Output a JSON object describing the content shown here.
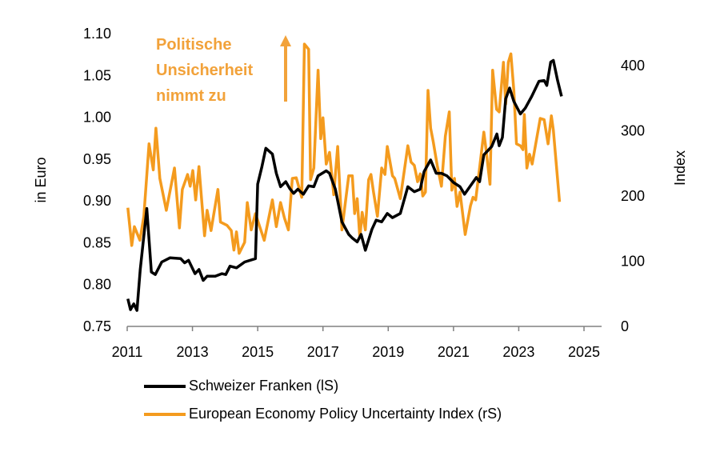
{
  "colors": {
    "chf": "#000000",
    "epu": "#F49B1E",
    "annotation": "#F2A23A"
  },
  "annotation": {
    "lines": [
      "Politische",
      "Unsicherheit",
      "nimmt zu"
    ],
    "arrow": "up-arrow"
  },
  "legend": {
    "placement": "bottom",
    "items": [
      {
        "label": "Schweizer Franken (lS)"
      },
      {
        "label": "European Economy Policy Uncertainty Index (rS)"
      }
    ]
  },
  "chart_data": {
    "type": "line",
    "xlabel": "",
    "ylabel_left": "in Euro",
    "ylabel_right": "Index",
    "xlim": [
      2011,
      2025
    ],
    "ylim_left": [
      0.75,
      1.1
    ],
    "ylim_right": [
      0,
      450
    ],
    "x_ticks": [
      "2011",
      "2013",
      "2015",
      "2017",
      "2019",
      "2021",
      "2023",
      "2025"
    ],
    "y_left_ticks": [
      "0.75",
      "0.80",
      "0.85",
      "0.90",
      "0.95",
      "1.00",
      "1.05",
      "1.10"
    ],
    "y_right_ticks": [
      "0",
      "100",
      "200",
      "300",
      "400"
    ],
    "grid": false,
    "series": [
      {
        "name": "Schweizer Franken (lS)",
        "axis": "left",
        "points": [
          [
            2011.02,
            0.783
          ],
          [
            2011.1,
            0.77
          ],
          [
            2011.2,
            0.777
          ],
          [
            2011.3,
            0.769
          ],
          [
            2011.4,
            0.818
          ],
          [
            2011.6,
            0.891
          ],
          [
            2011.74,
            0.815
          ],
          [
            2011.86,
            0.812
          ],
          [
            2012.06,
            0.827
          ],
          [
            2012.31,
            0.832
          ],
          [
            2012.64,
            0.831
          ],
          [
            2012.76,
            0.826
          ],
          [
            2012.88,
            0.829
          ],
          [
            2013.08,
            0.813
          ],
          [
            2013.2,
            0.818
          ],
          [
            2013.33,
            0.805
          ],
          [
            2013.45,
            0.81
          ],
          [
            2013.7,
            0.81
          ],
          [
            2013.9,
            0.813
          ],
          [
            2014.02,
            0.812
          ],
          [
            2014.15,
            0.822
          ],
          [
            2014.35,
            0.82
          ],
          [
            2014.6,
            0.827
          ],
          [
            2014.93,
            0.831
          ],
          [
            2015.0,
            0.92
          ],
          [
            2015.13,
            0.941
          ],
          [
            2015.25,
            0.963
          ],
          [
            2015.45,
            0.956
          ],
          [
            2015.57,
            0.933
          ],
          [
            2015.7,
            0.917
          ],
          [
            2015.86,
            0.923
          ],
          [
            2015.98,
            0.915
          ],
          [
            2016.1,
            0.909
          ],
          [
            2016.23,
            0.914
          ],
          [
            2016.4,
            0.908
          ],
          [
            2016.56,
            0.918
          ],
          [
            2016.72,
            0.917
          ],
          [
            2016.85,
            0.93
          ],
          [
            2017.1,
            0.936
          ],
          [
            2017.2,
            0.933
          ],
          [
            2017.38,
            0.914
          ],
          [
            2017.58,
            0.875
          ],
          [
            2017.79,
            0.86
          ],
          [
            2017.89,
            0.856
          ],
          [
            2018.05,
            0.851
          ],
          [
            2018.17,
            0.86
          ],
          [
            2018.3,
            0.841
          ],
          [
            2018.5,
            0.866
          ],
          [
            2018.63,
            0.877
          ],
          [
            2018.8,
            0.875
          ],
          [
            2018.97,
            0.885
          ],
          [
            2019.13,
            0.88
          ],
          [
            2019.37,
            0.885
          ],
          [
            2019.6,
            0.917
          ],
          [
            2019.8,
            0.911
          ],
          [
            2019.98,
            0.914
          ],
          [
            2020.1,
            0.935
          ],
          [
            2020.3,
            0.949
          ],
          [
            2020.47,
            0.933
          ],
          [
            2020.63,
            0.933
          ],
          [
            2020.8,
            0.93
          ],
          [
            2021.0,
            0.922
          ],
          [
            2021.2,
            0.917
          ],
          [
            2021.34,
            0.908
          ],
          [
            2021.5,
            0.917
          ],
          [
            2021.7,
            0.928
          ],
          [
            2021.8,
            0.923
          ],
          [
            2021.93,
            0.955
          ],
          [
            2022.17,
            0.965
          ],
          [
            2022.33,
            0.98
          ],
          [
            2022.4,
            0.966
          ],
          [
            2022.5,
            0.976
          ],
          [
            2022.6,
            1.022
          ],
          [
            2022.72,
            1.035
          ],
          [
            2022.85,
            1.019
          ],
          [
            2023.05,
            1.004
          ],
          [
            2023.2,
            1.011
          ],
          [
            2023.4,
            1.025
          ],
          [
            2023.62,
            1.043
          ],
          [
            2023.78,
            1.044
          ],
          [
            2023.86,
            1.038
          ],
          [
            2023.98,
            1.066
          ],
          [
            2024.06,
            1.068
          ],
          [
            2024.19,
            1.044
          ],
          [
            2024.31,
            1.025
          ]
        ]
      },
      {
        "name": "European Economy Policy Uncertainty Index (rS)",
        "axis": "right",
        "points": [
          [
            2011.02,
            182
          ],
          [
            2011.14,
            124
          ],
          [
            2011.22,
            153
          ],
          [
            2011.39,
            132
          ],
          [
            2011.51,
            169
          ],
          [
            2011.67,
            280
          ],
          [
            2011.8,
            240
          ],
          [
            2011.88,
            304
          ],
          [
            2012.0,
            227
          ],
          [
            2012.2,
            178
          ],
          [
            2012.45,
            243
          ],
          [
            2012.6,
            151
          ],
          [
            2012.69,
            210
          ],
          [
            2012.85,
            233
          ],
          [
            2012.93,
            215
          ],
          [
            2013.01,
            239
          ],
          [
            2013.1,
            194
          ],
          [
            2013.2,
            245
          ],
          [
            2013.37,
            139
          ],
          [
            2013.45,
            178
          ],
          [
            2013.57,
            147
          ],
          [
            2013.78,
            210
          ],
          [
            2013.86,
            160
          ],
          [
            2014.06,
            155
          ],
          [
            2014.19,
            147
          ],
          [
            2014.27,
            117
          ],
          [
            2014.35,
            145
          ],
          [
            2014.43,
            112
          ],
          [
            2014.6,
            129
          ],
          [
            2014.68,
            190
          ],
          [
            2014.8,
            148
          ],
          [
            2014.93,
            173
          ],
          [
            2015.2,
            132
          ],
          [
            2015.45,
            194
          ],
          [
            2015.57,
            153
          ],
          [
            2015.7,
            190
          ],
          [
            2015.82,
            166
          ],
          [
            2015.94,
            148
          ],
          [
            2016.06,
            227
          ],
          [
            2016.18,
            228
          ],
          [
            2016.35,
            198
          ],
          [
            2016.43,
            433
          ],
          [
            2016.56,
            425
          ],
          [
            2016.62,
            225
          ],
          [
            2016.72,
            243
          ],
          [
            2016.85,
            393
          ],
          [
            2016.93,
            288
          ],
          [
            2017.0,
            320
          ],
          [
            2017.1,
            249
          ],
          [
            2017.2,
            267
          ],
          [
            2017.33,
            202
          ],
          [
            2017.45,
            276
          ],
          [
            2017.58,
            148
          ],
          [
            2017.79,
            231
          ],
          [
            2017.9,
            231
          ],
          [
            2017.97,
            173
          ],
          [
            2018.05,
            196
          ],
          [
            2018.13,
            136
          ],
          [
            2018.2,
            175
          ],
          [
            2018.3,
            148
          ],
          [
            2018.4,
            225
          ],
          [
            2018.47,
            233
          ],
          [
            2018.55,
            206
          ],
          [
            2018.67,
            169
          ],
          [
            2018.8,
            243
          ],
          [
            2018.9,
            233
          ],
          [
            2018.97,
            276
          ],
          [
            2019.13,
            231
          ],
          [
            2019.2,
            227
          ],
          [
            2019.37,
            196
          ],
          [
            2019.6,
            277
          ],
          [
            2019.7,
            252
          ],
          [
            2019.8,
            247
          ],
          [
            2019.9,
            222
          ],
          [
            2019.98,
            234
          ],
          [
            2020.06,
            200
          ],
          [
            2020.14,
            206
          ],
          [
            2020.22,
            362
          ],
          [
            2020.3,
            304
          ],
          [
            2020.38,
            283
          ],
          [
            2020.5,
            247
          ],
          [
            2020.63,
            215
          ],
          [
            2020.75,
            292
          ],
          [
            2020.87,
            329
          ],
          [
            2020.95,
            209
          ],
          [
            2021.03,
            227
          ],
          [
            2021.11,
            184
          ],
          [
            2021.2,
            206
          ],
          [
            2021.36,
            141
          ],
          [
            2021.52,
            185
          ],
          [
            2021.6,
            198
          ],
          [
            2021.68,
            194
          ],
          [
            2021.8,
            243
          ],
          [
            2021.93,
            298
          ],
          [
            2022.0,
            271
          ],
          [
            2022.12,
            218
          ],
          [
            2022.2,
            393
          ],
          [
            2022.32,
            333
          ],
          [
            2022.4,
            329
          ],
          [
            2022.53,
            405
          ],
          [
            2022.6,
            341
          ],
          [
            2022.68,
            405
          ],
          [
            2022.76,
            418
          ],
          [
            2022.85,
            362
          ],
          [
            2022.93,
            280
          ],
          [
            2023.05,
            277
          ],
          [
            2023.13,
            271
          ],
          [
            2023.17,
            325
          ],
          [
            2023.25,
            243
          ],
          [
            2023.33,
            264
          ],
          [
            2023.41,
            249
          ],
          [
            2023.66,
            319
          ],
          [
            2023.78,
            317
          ],
          [
            2023.9,
            280
          ],
          [
            2024.0,
            323
          ],
          [
            2024.06,
            301
          ],
          [
            2024.25,
            191
          ]
        ]
      }
    ]
  }
}
